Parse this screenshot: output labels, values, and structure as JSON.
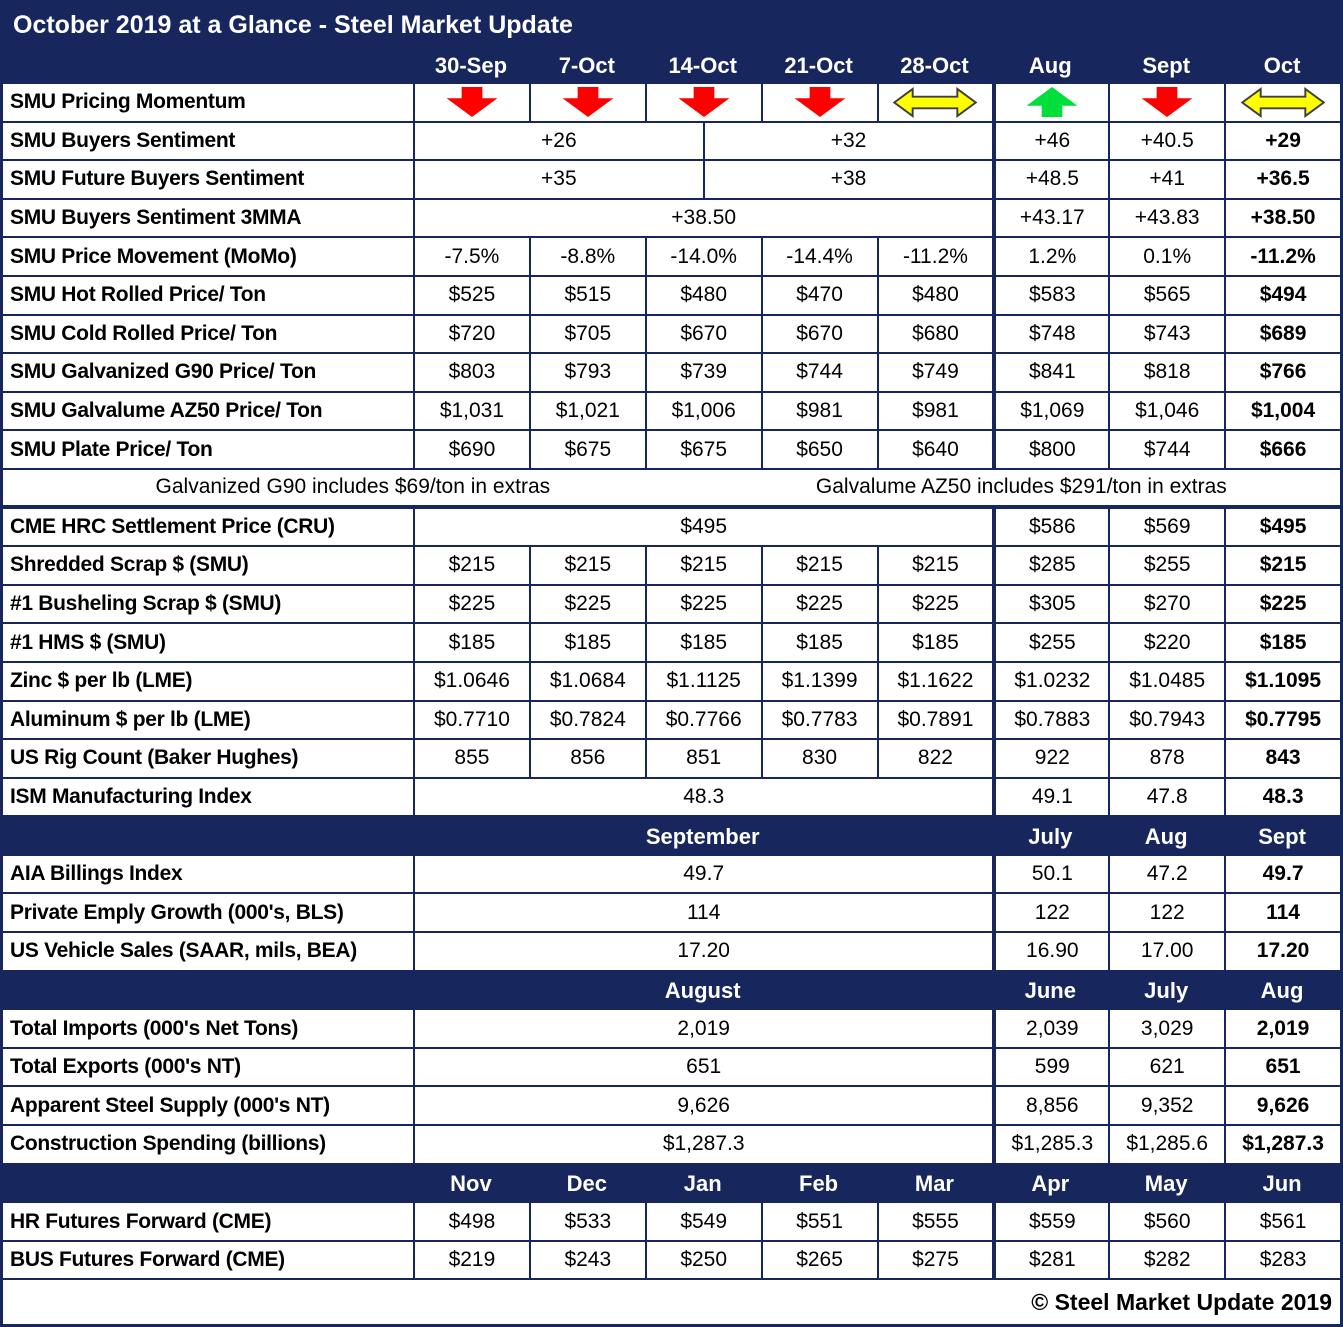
{
  "title": "October 2019 at a Glance - Steel Market Update",
  "footer": "© Steel Market Update 2019",
  "colors": {
    "navy": "#17265C",
    "arrow_red": "#FE0000",
    "arrow_green": "#00DE3C",
    "arrow_yellow": "#FFFF00",
    "arrow_outline": "#3F3F3F",
    "header_text": "#FFFFFF",
    "body_text": "#000000"
  },
  "columns": [
    "30-Sep",
    "7-Oct",
    "14-Oct",
    "21-Oct",
    "28-Oct",
    "Aug",
    "Sept",
    "Oct"
  ],
  "rows": [
    {
      "type": "header",
      "name": "column-header-row",
      "label": "",
      "cells": [
        {
          "t": "30-Sep",
          "u": 2
        },
        {
          "t": "7-Oct",
          "u": 2
        },
        {
          "t": "14-Oct",
          "u": 2
        },
        {
          "t": "21-Oct",
          "u": 2
        },
        {
          "t": "28-Oct",
          "u": 2
        },
        {
          "t": "Aug",
          "u": 2
        },
        {
          "t": "Sept",
          "u": 2
        },
        {
          "t": "Oct",
          "u": 2
        }
      ]
    },
    {
      "type": "arrows",
      "name": "smu-pricing-momentum-row",
      "label": "SMU Pricing Momentum",
      "cells": [
        {
          "a": "down",
          "u": 2
        },
        {
          "a": "down",
          "u": 2
        },
        {
          "a": "down",
          "u": 2
        },
        {
          "a": "down",
          "u": 2
        },
        {
          "a": "sideways",
          "u": 2
        },
        {
          "a": "up",
          "u": 2
        },
        {
          "a": "down",
          "u": 2
        },
        {
          "a": "sideways",
          "u": 2
        }
      ]
    },
    {
      "type": "data",
      "label": "SMU Buyers Sentiment",
      "cells": [
        {
          "t": "+26",
          "u": 5
        },
        {
          "t": "+32",
          "u": 5
        },
        {
          "t": "+46",
          "u": 2
        },
        {
          "t": "+40.5",
          "u": 2
        },
        {
          "t": "+29",
          "u": 2,
          "b": 1
        }
      ]
    },
    {
      "type": "data",
      "label": "SMU Future Buyers Sentiment",
      "cells": [
        {
          "t": "+35",
          "u": 5
        },
        {
          "t": "+38",
          "u": 5
        },
        {
          "t": "+48.5",
          "u": 2
        },
        {
          "t": "+41",
          "u": 2
        },
        {
          "t": "+36.5",
          "u": 2,
          "b": 1
        }
      ]
    },
    {
      "type": "data",
      "label": "SMU Buyers Sentiment 3MMA",
      "cells": [
        {
          "t": "+38.50",
          "u": 10
        },
        {
          "t": "+43.17",
          "u": 2
        },
        {
          "t": "+43.83",
          "u": 2
        },
        {
          "t": "+38.50",
          "u": 2,
          "b": 1
        }
      ]
    },
    {
      "type": "data",
      "label": "SMU Price Movement (MoMo)",
      "cells": [
        {
          "t": "-7.5%",
          "u": 2
        },
        {
          "t": "-8.8%",
          "u": 2
        },
        {
          "t": "-14.0%",
          "u": 2
        },
        {
          "t": "-14.4%",
          "u": 2
        },
        {
          "t": "-11.2%",
          "u": 2
        },
        {
          "t": "1.2%",
          "u": 2
        },
        {
          "t": "0.1%",
          "u": 2
        },
        {
          "t": "-11.2%",
          "u": 2,
          "b": 1
        }
      ]
    },
    {
      "type": "data",
      "label": "SMU Hot Rolled Price/ Ton",
      "cells": [
        {
          "t": "$525",
          "u": 2
        },
        {
          "t": "$515",
          "u": 2
        },
        {
          "t": "$480",
          "u": 2
        },
        {
          "t": "$470",
          "u": 2
        },
        {
          "t": "$480",
          "u": 2
        },
        {
          "t": "$583",
          "u": 2
        },
        {
          "t": "$565",
          "u": 2
        },
        {
          "t": "$494",
          "u": 2,
          "b": 1
        }
      ]
    },
    {
      "type": "data",
      "label": "SMU Cold Rolled Price/ Ton",
      "cells": [
        {
          "t": "$720",
          "u": 2
        },
        {
          "t": "$705",
          "u": 2
        },
        {
          "t": "$670",
          "u": 2
        },
        {
          "t": "$670",
          "u": 2
        },
        {
          "t": "$680",
          "u": 2
        },
        {
          "t": "$748",
          "u": 2
        },
        {
          "t": "$743",
          "u": 2
        },
        {
          "t": "$689",
          "u": 2,
          "b": 1
        }
      ]
    },
    {
      "type": "data",
      "label": "SMU Galvanized G90 Price/ Ton",
      "cells": [
        {
          "t": "$803",
          "u": 2
        },
        {
          "t": "$793",
          "u": 2
        },
        {
          "t": "$739",
          "u": 2
        },
        {
          "t": "$744",
          "u": 2
        },
        {
          "t": "$749",
          "u": 2
        },
        {
          "t": "$841",
          "u": 2
        },
        {
          "t": "$818",
          "u": 2
        },
        {
          "t": "$766",
          "u": 2,
          "b": 1
        }
      ]
    },
    {
      "type": "data",
      "label": "SMU Galvalume AZ50 Price/ Ton",
      "cells": [
        {
          "t": "$1,031",
          "u": 2
        },
        {
          "t": "$1,021",
          "u": 2
        },
        {
          "t": "$1,006",
          "u": 2
        },
        {
          "t": "$981",
          "u": 2
        },
        {
          "t": "$981",
          "u": 2
        },
        {
          "t": "$1,069",
          "u": 2
        },
        {
          "t": "$1,046",
          "u": 2
        },
        {
          "t": "$1,004",
          "u": 2,
          "b": 1
        }
      ]
    },
    {
      "type": "data",
      "label": "SMU Plate Price/ Ton",
      "cells": [
        {
          "t": "$690",
          "u": 2
        },
        {
          "t": "$675",
          "u": 2
        },
        {
          "t": "$675",
          "u": 2
        },
        {
          "t": "$650",
          "u": 2
        },
        {
          "t": "$640",
          "u": 2
        },
        {
          "t": "$800",
          "u": 2
        },
        {
          "t": "$744",
          "u": 2
        },
        {
          "t": "$666",
          "u": 2,
          "b": 1
        }
      ]
    },
    {
      "type": "note",
      "name": "extras-note-row",
      "cells": [
        {
          "t": "Galvanized G90 includes $69/ton in extras",
          "u": 6
        },
        {
          "t": "Galvalume AZ50 includes $291/ton in extras",
          "u": 11
        }
      ]
    },
    {
      "type": "data",
      "label": "CME HRC Settlement Price (CRU)",
      "cells": [
        {
          "t": "$495",
          "u": 10
        },
        {
          "t": "$586",
          "u": 2
        },
        {
          "t": "$569",
          "u": 2
        },
        {
          "t": "$495",
          "u": 2,
          "b": 1
        }
      ]
    },
    {
      "type": "data",
      "label": "Shredded Scrap $ (SMU)",
      "cells": [
        {
          "t": "$215",
          "u": 2
        },
        {
          "t": "$215",
          "u": 2
        },
        {
          "t": "$215",
          "u": 2
        },
        {
          "t": "$215",
          "u": 2
        },
        {
          "t": "$215",
          "u": 2
        },
        {
          "t": "$285",
          "u": 2
        },
        {
          "t": "$255",
          "u": 2
        },
        {
          "t": "$215",
          "u": 2,
          "b": 1
        }
      ]
    },
    {
      "type": "data",
      "label": "#1 Busheling Scrap $ (SMU)",
      "cells": [
        {
          "t": "$225",
          "u": 2
        },
        {
          "t": "$225",
          "u": 2
        },
        {
          "t": "$225",
          "u": 2
        },
        {
          "t": "$225",
          "u": 2
        },
        {
          "t": "$225",
          "u": 2
        },
        {
          "t": "$305",
          "u": 2
        },
        {
          "t": "$270",
          "u": 2
        },
        {
          "t": "$225",
          "u": 2,
          "b": 1
        }
      ]
    },
    {
      "type": "data",
      "label": "#1 HMS $ (SMU)",
      "cells": [
        {
          "t": "$185",
          "u": 2
        },
        {
          "t": "$185",
          "u": 2
        },
        {
          "t": "$185",
          "u": 2
        },
        {
          "t": "$185",
          "u": 2
        },
        {
          "t": "$185",
          "u": 2
        },
        {
          "t": "$255",
          "u": 2
        },
        {
          "t": "$220",
          "u": 2
        },
        {
          "t": "$185",
          "u": 2,
          "b": 1
        }
      ]
    },
    {
      "type": "data",
      "label": "Zinc $ per lb (LME)",
      "cells": [
        {
          "t": "$1.0646",
          "u": 2
        },
        {
          "t": "$1.0684",
          "u": 2
        },
        {
          "t": "$1.1125",
          "u": 2
        },
        {
          "t": "$1.1399",
          "u": 2
        },
        {
          "t": "$1.1622",
          "u": 2
        },
        {
          "t": "$1.0232",
          "u": 2
        },
        {
          "t": "$1.0485",
          "u": 2
        },
        {
          "t": "$1.1095",
          "u": 2,
          "b": 1
        }
      ]
    },
    {
      "type": "data",
      "label": "Aluminum $ per lb (LME)",
      "cells": [
        {
          "t": "$0.7710",
          "u": 2
        },
        {
          "t": "$0.7824",
          "u": 2
        },
        {
          "t": "$0.7766",
          "u": 2
        },
        {
          "t": "$0.7783",
          "u": 2
        },
        {
          "t": "$0.7891",
          "u": 2
        },
        {
          "t": "$0.7883",
          "u": 2
        },
        {
          "t": "$0.7943",
          "u": 2
        },
        {
          "t": "$0.7795",
          "u": 2,
          "b": 1
        }
      ]
    },
    {
      "type": "data",
      "label": "US Rig Count (Baker Hughes)",
      "cells": [
        {
          "t": "855",
          "u": 2
        },
        {
          "t": "856",
          "u": 2
        },
        {
          "t": "851",
          "u": 2
        },
        {
          "t": "830",
          "u": 2
        },
        {
          "t": "822",
          "u": 2
        },
        {
          "t": "922",
          "u": 2
        },
        {
          "t": "878",
          "u": 2
        },
        {
          "t": "843",
          "u": 2,
          "b": 1
        }
      ]
    },
    {
      "type": "data",
      "label": "ISM Manufacturing Index",
      "cells": [
        {
          "t": "48.3",
          "u": 10
        },
        {
          "t": "49.1",
          "u": 2
        },
        {
          "t": "47.8",
          "u": 2
        },
        {
          "t": "48.3",
          "u": 2,
          "b": 1
        }
      ]
    },
    {
      "type": "band",
      "name": "month-band-september",
      "label": "",
      "cells": [
        {
          "t": "September",
          "u": 10
        },
        {
          "t": "July",
          "u": 2
        },
        {
          "t": "Aug",
          "u": 2
        },
        {
          "t": "Sept",
          "u": 2
        }
      ]
    },
    {
      "type": "data",
      "label": "AIA Billings Index",
      "cells": [
        {
          "t": "49.7",
          "u": 10
        },
        {
          "t": "50.1",
          "u": 2
        },
        {
          "t": "47.2",
          "u": 2
        },
        {
          "t": "49.7",
          "u": 2,
          "b": 1
        }
      ]
    },
    {
      "type": "data",
      "label": "Private Emply Growth (000's, BLS)",
      "cells": [
        {
          "t": "114",
          "u": 10
        },
        {
          "t": "122",
          "u": 2
        },
        {
          "t": "122",
          "u": 2
        },
        {
          "t": "114",
          "u": 2,
          "b": 1
        }
      ]
    },
    {
      "type": "data",
      "label": "US Vehicle Sales (SAAR, mils, BEA)",
      "cells": [
        {
          "t": "17.20",
          "u": 10
        },
        {
          "t": "16.90",
          "u": 2
        },
        {
          "t": "17.00",
          "u": 2
        },
        {
          "t": "17.20",
          "u": 2,
          "b": 1
        }
      ]
    },
    {
      "type": "band",
      "name": "month-band-august",
      "label": "",
      "cells": [
        {
          "t": "August",
          "u": 10
        },
        {
          "t": "June",
          "u": 2
        },
        {
          "t": "July",
          "u": 2
        },
        {
          "t": "Aug",
          "u": 2
        }
      ]
    },
    {
      "type": "data",
      "label": "Total Imports (000's Net Tons)",
      "cells": [
        {
          "t": "2,019",
          "u": 10
        },
        {
          "t": "2,039",
          "u": 2
        },
        {
          "t": "3,029",
          "u": 2
        },
        {
          "t": "2,019",
          "u": 2,
          "b": 1
        }
      ]
    },
    {
      "type": "data",
      "label": "Total Exports (000's NT)",
      "cells": [
        {
          "t": "651",
          "u": 10
        },
        {
          "t": "599",
          "u": 2
        },
        {
          "t": "621",
          "u": 2
        },
        {
          "t": "651",
          "u": 2,
          "b": 1
        }
      ]
    },
    {
      "type": "data",
      "label": "Apparent Steel Supply (000's NT)",
      "cells": [
        {
          "t": "9,626",
          "u": 10
        },
        {
          "t": "8,856",
          "u": 2
        },
        {
          "t": "9,352",
          "u": 2
        },
        {
          "t": "9,626",
          "u": 2,
          "b": 1
        }
      ]
    },
    {
      "type": "data",
      "label": "Construction Spending (billions)",
      "cells": [
        {
          "t": "$1,287.3",
          "u": 10
        },
        {
          "t": "$1,285.3",
          "u": 2
        },
        {
          "t": "$1,285.6",
          "u": 2
        },
        {
          "t": "$1,287.3",
          "u": 2,
          "b": 1
        }
      ]
    },
    {
      "type": "band",
      "name": "month-band-futures",
      "label": "",
      "cells": [
        {
          "t": "Nov",
          "u": 2
        },
        {
          "t": "Dec",
          "u": 2
        },
        {
          "t": "Jan",
          "u": 2
        },
        {
          "t": "Feb",
          "u": 2
        },
        {
          "t": "Mar",
          "u": 2
        },
        {
          "t": "Apr",
          "u": 2
        },
        {
          "t": "May",
          "u": 2
        },
        {
          "t": "Jun",
          "u": 2
        }
      ]
    },
    {
      "type": "data",
      "label": "HR Futures Forward (CME)",
      "cells": [
        {
          "t": "$498",
          "u": 2
        },
        {
          "t": "$533",
          "u": 2
        },
        {
          "t": "$549",
          "u": 2
        },
        {
          "t": "$551",
          "u": 2
        },
        {
          "t": "$555",
          "u": 2
        },
        {
          "t": "$559",
          "u": 2
        },
        {
          "t": "$560",
          "u": 2
        },
        {
          "t": "$561",
          "u": 2
        }
      ]
    },
    {
      "type": "data",
      "label": "BUS Futures Forward (CME)",
      "cells": [
        {
          "t": "$219",
          "u": 2
        },
        {
          "t": "$243",
          "u": 2
        },
        {
          "t": "$250",
          "u": 2
        },
        {
          "t": "$265",
          "u": 2
        },
        {
          "t": "$275",
          "u": 2
        },
        {
          "t": "$281",
          "u": 2
        },
        {
          "t": "$282",
          "u": 2
        },
        {
          "t": "$283",
          "u": 2
        }
      ]
    }
  ]
}
